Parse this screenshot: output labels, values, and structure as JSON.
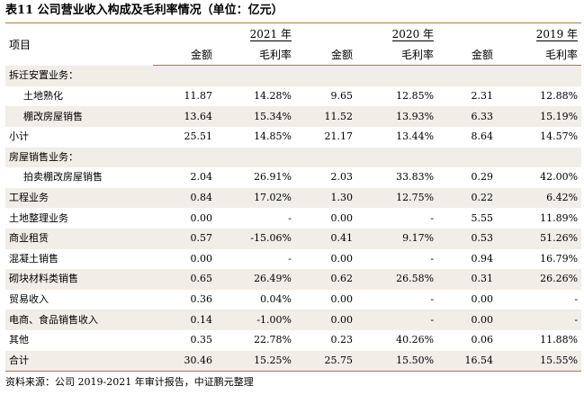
{
  "title": "表11 公司营业收入构成及毛利率情况（单位：亿元）",
  "header": {
    "item": "项目",
    "years": [
      "2021 年",
      "2020 年",
      "2019 年"
    ],
    "amount": "金额",
    "margin": "毛利率"
  },
  "rows": [
    {
      "label": "拆迁安置业务：",
      "type": "section",
      "shade": true,
      "v": [
        "",
        "",
        "",
        "",
        "",
        ""
      ]
    },
    {
      "label": "土地熟化",
      "type": "indent",
      "shade": false,
      "v": [
        "11.87",
        "14.28%",
        "9.65",
        "12.85%",
        "2.31",
        "12.88%"
      ]
    },
    {
      "label": "棚改房屋销售",
      "type": "indent",
      "shade": true,
      "v": [
        "13.64",
        "15.34%",
        "11.52",
        "13.93%",
        "6.33",
        "15.19%"
      ]
    },
    {
      "label": "小计",
      "type": "bold",
      "shade": false,
      "v": [
        "25.51",
        "14.85%",
        "21.17",
        "13.44%",
        "8.64",
        "14.57%"
      ]
    },
    {
      "label": "房屋销售业务：",
      "type": "section",
      "shade": true,
      "v": [
        "",
        "",
        "",
        "",
        "",
        ""
      ]
    },
    {
      "label": "拍卖棚改房屋销售",
      "type": "indent",
      "shade": false,
      "v": [
        "2.04",
        "26.91%",
        "2.03",
        "33.83%",
        "0.29",
        "42.00%"
      ]
    },
    {
      "label": "工程业务",
      "type": "plain",
      "shade": true,
      "v": [
        "0.84",
        "17.02%",
        "1.30",
        "12.75%",
        "0.22",
        "6.42%"
      ]
    },
    {
      "label": "土地整理业务",
      "type": "plain",
      "shade": false,
      "v": [
        "0.00",
        "-",
        "0.00",
        "-",
        "5.55",
        "11.89%"
      ]
    },
    {
      "label": "商业租赁",
      "type": "plain",
      "shade": true,
      "v": [
        "0.57",
        "-15.06%",
        "0.41",
        "9.17%",
        "0.53",
        "51.26%"
      ]
    },
    {
      "label": "混凝土销售",
      "type": "plain",
      "shade": false,
      "v": [
        "0.00",
        "-",
        "0.00",
        "-",
        "0.94",
        "16.79%"
      ]
    },
    {
      "label": "砌块材料类销售",
      "type": "plain",
      "shade": true,
      "v": [
        "0.65",
        "26.49%",
        "0.62",
        "26.58%",
        "0.31",
        "26.26%"
      ]
    },
    {
      "label": "贸易收入",
      "type": "plain",
      "shade": false,
      "v": [
        "0.36",
        "0.04%",
        "0.00",
        "-",
        "0.00",
        "-"
      ]
    },
    {
      "label": "电商、食品销售收入",
      "type": "plain",
      "shade": true,
      "v": [
        "0.14",
        "-1.00%",
        "0.00",
        "-",
        "0.00",
        "-"
      ]
    },
    {
      "label": "其他",
      "type": "bold",
      "shade": false,
      "v": [
        "0.35",
        "22.78%",
        "0.23",
        "40.26%",
        "0.06",
        "11.88%"
      ]
    },
    {
      "label": "合计",
      "type": "total",
      "shade": true,
      "v": [
        "30.46",
        "15.25%",
        "25.75",
        "15.50%",
        "16.54",
        "15.55%"
      ]
    }
  ],
  "source": "资料来源：公司 2019-2021 年审计报告，中证鹏元整理"
}
